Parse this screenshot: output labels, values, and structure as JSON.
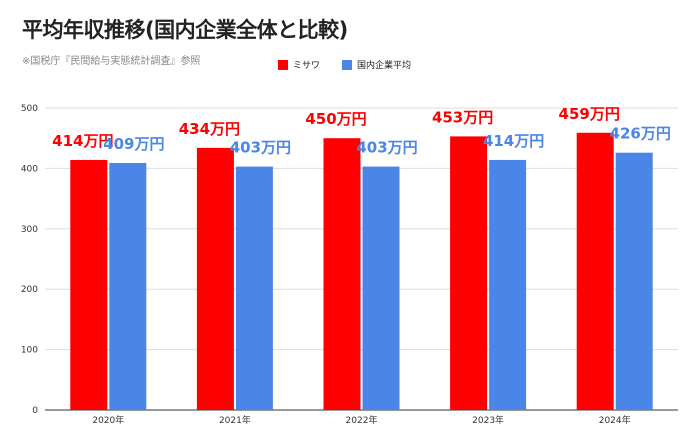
{
  "chart_data": {
    "type": "bar",
    "title": "平均年収推移(国内企業全体と比較)",
    "subtitle": "※国税庁『民間給与実態統計調査』参照",
    "categories": [
      "2020年",
      "2021年",
      "2022年",
      "2023年",
      "2024年"
    ],
    "series": [
      {
        "name": "ミサワ",
        "color": "#ff0000",
        "values": [
          414,
          434,
          450,
          453,
          459
        ],
        "labels": [
          "414万円",
          "434万円",
          "450万円",
          "453万円",
          "459万円"
        ]
      },
      {
        "name": "国内企業平均",
        "color": "#4a86e8",
        "values": [
          409,
          403,
          403,
          414,
          426
        ],
        "labels": [
          "409万円",
          "403万円",
          "403万円",
          "414万円",
          "426万円"
        ]
      }
    ],
    "ylim": [
      0,
      500
    ],
    "yticks": [
      "0",
      "100",
      "200",
      "300",
      "400",
      "500"
    ],
    "grid": true,
    "legend": "top-center"
  }
}
